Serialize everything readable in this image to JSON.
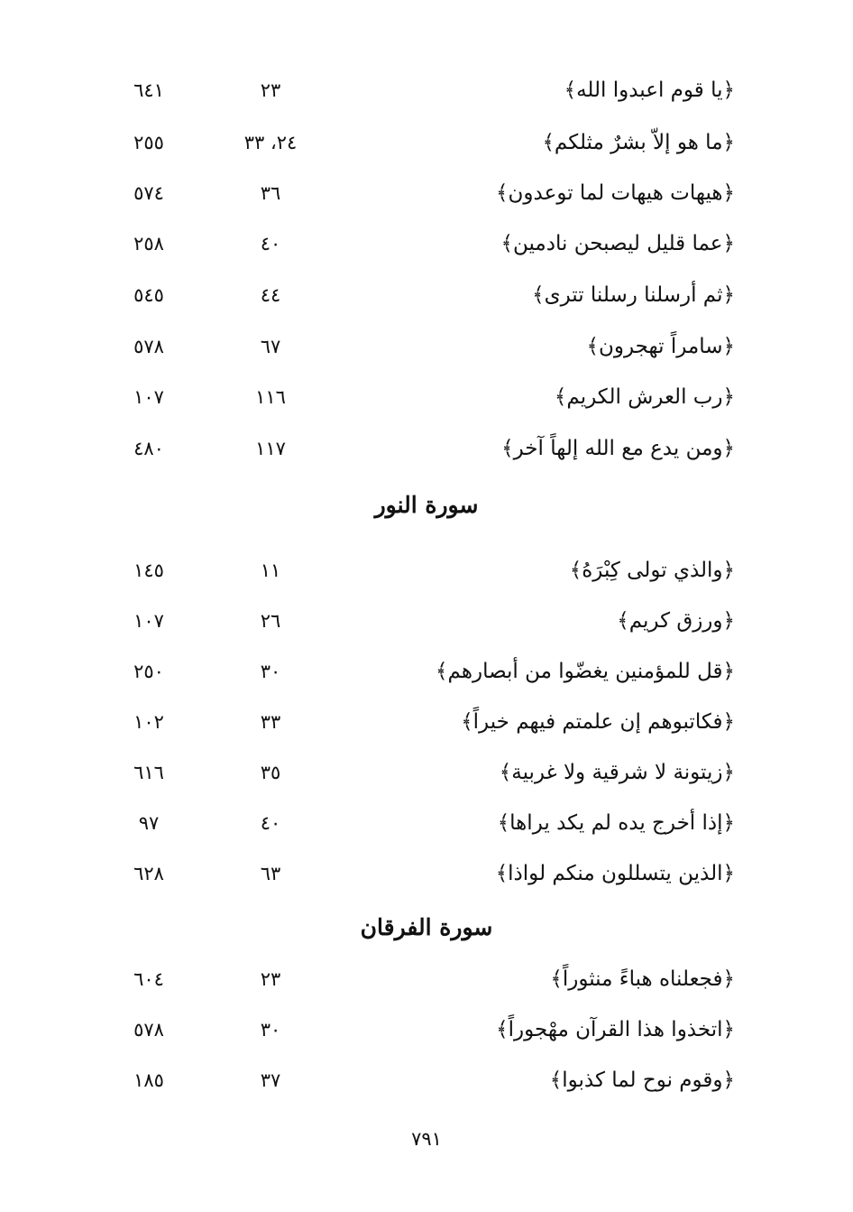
{
  "sections": [
    {
      "title": "",
      "entries": [
        {
          "verse": "﴿يا قوم اعبدوا الله﴾",
          "ayah": "٢٣",
          "page": "٦٤١"
        },
        {
          "verse": "﴿ما هو إلاّ بشرٌ مثلكم﴾",
          "ayah": "٢٤، ٣٣",
          "page": "٢٥٥"
        },
        {
          "verse": "﴿هيهات هيهات لما توعدون﴾",
          "ayah": "٣٦",
          "page": "٥٧٤"
        },
        {
          "verse": "﴿عما قليل ليصبحن نادمين﴾",
          "ayah": "٤٠",
          "page": "٢٥٨"
        },
        {
          "verse": "﴿ثم أرسلنا رسلنا تترى﴾",
          "ayah": "٤٤",
          "page": "٥٤٥"
        },
        {
          "verse": "﴿سامراً تهجرون﴾",
          "ayah": "٦٧",
          "page": "٥٧٨"
        },
        {
          "verse": "﴿رب العرش الكريم﴾",
          "ayah": "١١٦",
          "page": "١٠٧"
        },
        {
          "verse": "﴿ومن يدع مع الله إلهاً آخر﴾",
          "ayah": "١١٧",
          "page": "٤٨٠"
        }
      ]
    },
    {
      "title": "سورة النور",
      "entries": [
        {
          "verse": "﴿والذي تولى كِبْرَهُ﴾",
          "ayah": "١١",
          "page": "١٤٥"
        },
        {
          "verse": "﴿ورزق كريم﴾",
          "ayah": "٢٦",
          "page": "١٠٧"
        },
        {
          "verse": "﴿قل للمؤمنين يغضّوا من أبصارهم﴾",
          "ayah": "٣٠",
          "page": "٢٥٠"
        },
        {
          "verse": "﴿فكاتبوهم إن علمتم فيهم خيراً﴾",
          "ayah": "٣٣",
          "page": "١٠٢"
        },
        {
          "verse": "﴿زيتونة لا شرقية ولا غربية﴾",
          "ayah": "٣٥",
          "page": "٦١٦"
        },
        {
          "verse": "﴿إذا أخرج يده لم يكد يراها﴾",
          "ayah": "٤٠",
          "page": "٩٧"
        },
        {
          "verse": "﴿الذين يتسللون منكم لواذا﴾",
          "ayah": "٦٣",
          "page": "٦٢٨"
        }
      ]
    },
    {
      "title": "سورة الفرقان",
      "entries": [
        {
          "verse": "﴿فجعلناه هباءً منثوراً﴾",
          "ayah": "٢٣",
          "page": "٦٠٤"
        },
        {
          "verse": "﴿اتخذوا هذا القرآن مهْجوراً﴾",
          "ayah": "٣٠",
          "page": "٥٧٨"
        },
        {
          "verse": "﴿وقوم نوح لما كذبوا﴾",
          "ayah": "٣٧",
          "page": "١٨٥"
        }
      ]
    }
  ],
  "page_number": "٧٩١"
}
